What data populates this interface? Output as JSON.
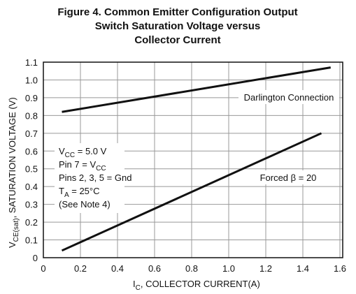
{
  "chart_data": {
    "type": "line",
    "title": [
      "Figure 4. Common Emitter Configuration Output",
      "Switch Saturation Voltage versus",
      "Collector Current"
    ],
    "x_label": [
      "I",
      "C",
      ", COLLECTOR CURRENT(A)"
    ],
    "y_label": [
      "V",
      "CE(sat)",
      ", SATURATION VOLTAGE (V)"
    ],
    "series": [
      {
        "name": "Darlington Connection",
        "color": "#111111",
        "x": [
          0.1,
          1.55
        ],
        "values": [
          0.82,
          1.07
        ]
      },
      {
        "name": "Forced β = 20",
        "color": "#111111",
        "x": [
          0.1,
          1.5
        ],
        "values": [
          0.04,
          0.7
        ]
      }
    ],
    "notes": [
      [
        "V",
        "CC",
        " = 5.0 V"
      ],
      [
        "Pin 7 = V",
        "CC"
      ],
      [
        "Pins 2, 3, 5 = Gnd"
      ],
      [
        "T",
        "A",
        " = 25°C"
      ],
      [
        "(See Note 4)"
      ]
    ],
    "xlim": [
      0,
      1.6
    ],
    "xticks": [
      0,
      0.2,
      0.4,
      0.6,
      0.8,
      {
        "value": 1,
        "label": "1.0"
      },
      1.2,
      1.4,
      1.6
    ],
    "ylim": [
      0,
      1.1
    ],
    "yticks": [
      0,
      0.1,
      0.2,
      0.3,
      0.4,
      0.5,
      0.6,
      0.7,
      0.8,
      0.9,
      {
        "value": 1,
        "label": "1.0"
      },
      1.1
    ],
    "grid": true
  }
}
